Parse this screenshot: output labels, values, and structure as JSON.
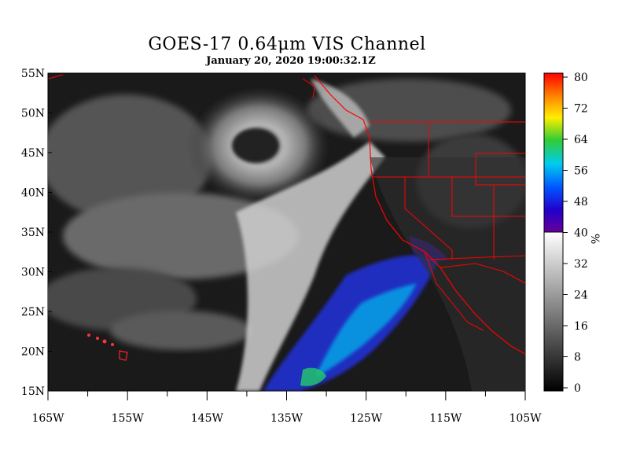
{
  "title": "GOES-17  0.64μm VIS Channel",
  "subtitle": "January 20,  2020 19:00:32.1Z",
  "lat_labels": [
    "55N",
    "50N",
    "45N",
    "40N",
    "35N",
    "30N",
    "25N",
    "20N",
    "15N"
  ],
  "lon_labels": [
    "165W",
    "155W",
    "145W",
    "135W",
    "125W",
    "115W",
    "105W"
  ],
  "colorbar": {
    "ticks": [
      "80",
      "72",
      "64",
      "56",
      "48",
      "40",
      "32",
      "24",
      "16",
      "8",
      "0"
    ],
    "unit": "%",
    "min": 0,
    "max": 80
  },
  "colors": {
    "background": "#ffffff",
    "map_dark": "#1a1a1a",
    "border": "#ff0000"
  }
}
